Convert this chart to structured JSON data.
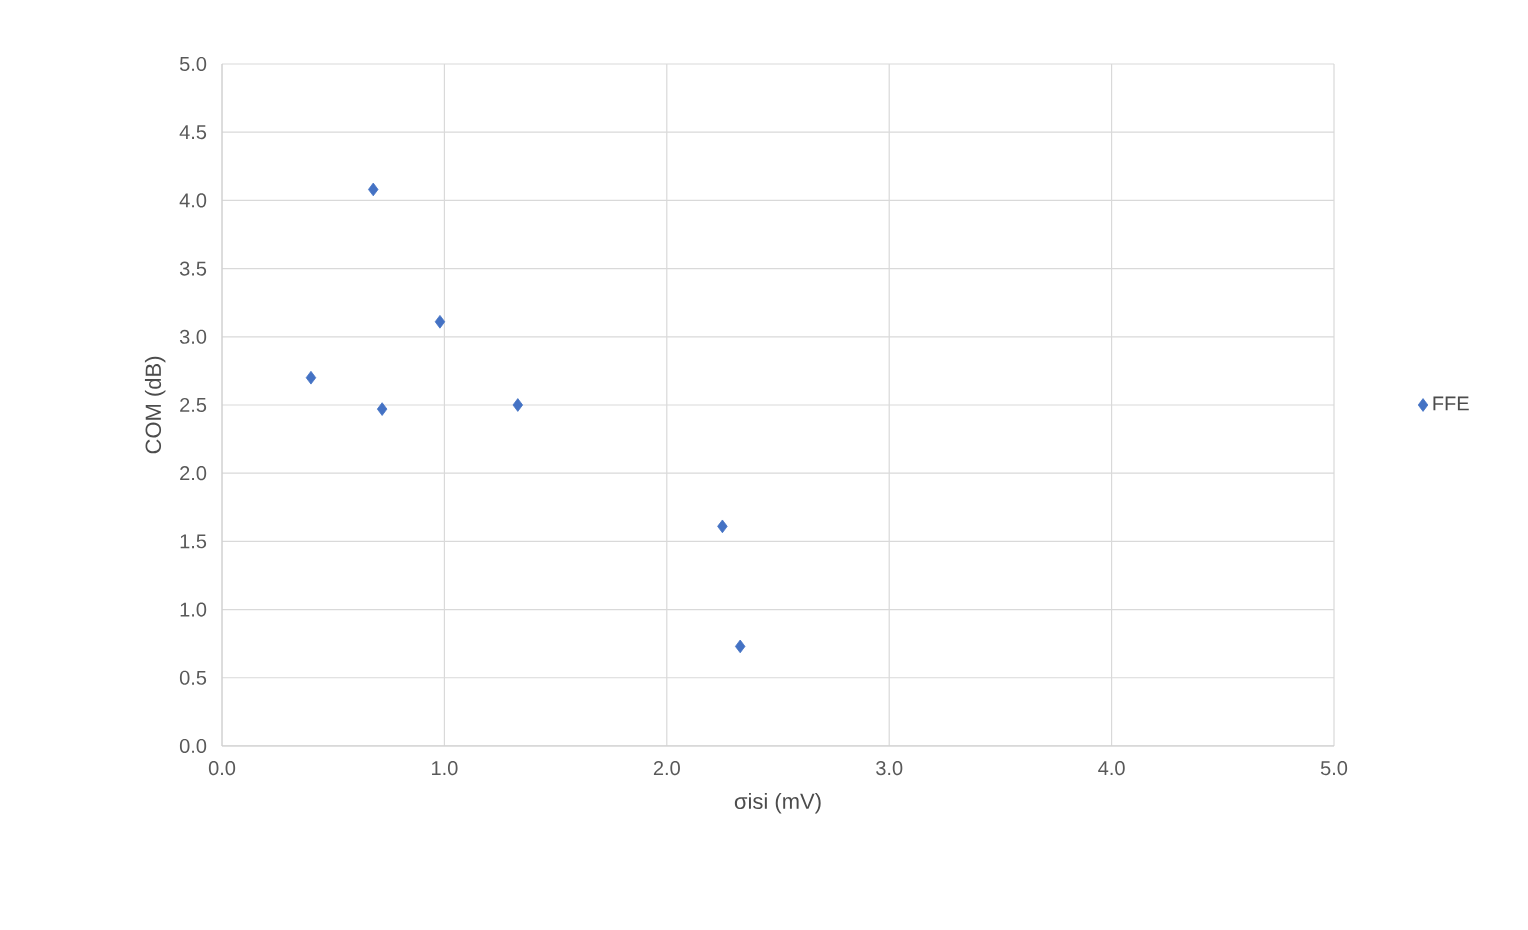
{
  "chart_data": {
    "type": "scatter",
    "xlabel": "σisi (mV)",
    "ylabel": "COM (dB)",
    "x": [
      0.4,
      0.68,
      0.72,
      0.98,
      1.33,
      2.25,
      2.33
    ],
    "series": [
      {
        "name": "FFE",
        "color": "#4472c4",
        "values": [
          2.7,
          4.08,
          2.47,
          3.11,
          2.5,
          1.61,
          0.73
        ]
      }
    ],
    "xlim": [
      0,
      5
    ],
    "ylim": [
      0,
      5
    ],
    "xticks": [
      {
        "value": 0,
        "label": "0.0"
      },
      {
        "value": 1,
        "label": "1.0"
      },
      {
        "value": 2,
        "label": "2.0"
      },
      {
        "value": 3,
        "label": "3.0"
      },
      {
        "value": 4,
        "label": "4.0"
      },
      {
        "value": 5,
        "label": "5.0"
      }
    ],
    "yticks": [
      {
        "value": 0,
        "label": "0.0"
      },
      {
        "value": 0.5,
        "label": "0.5"
      },
      {
        "value": 1,
        "label": "1.0"
      },
      {
        "value": 1.5,
        "label": "1.5"
      },
      {
        "value": 2,
        "label": "2.0"
      },
      {
        "value": 2.5,
        "label": "2.5"
      },
      {
        "value": 3,
        "label": "3.0"
      },
      {
        "value": 3.5,
        "label": "3.5"
      },
      {
        "value": 4,
        "label": "4.0"
      },
      {
        "value": 4.5,
        "label": "4.5"
      },
      {
        "value": 5,
        "label": "5.0"
      }
    ],
    "grid": true,
    "legend": "right",
    "marker": "diamond"
  }
}
